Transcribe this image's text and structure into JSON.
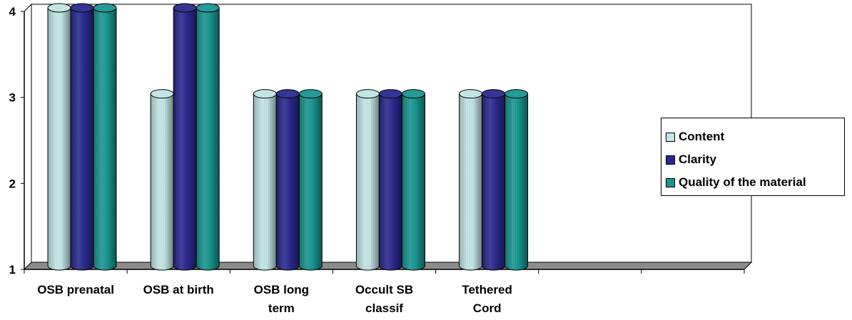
{
  "chart_data": {
    "type": "bar",
    "title": "",
    "xlabel": "",
    "ylabel": "",
    "ylim": [
      1,
      4
    ],
    "yticks": [
      1,
      2,
      3,
      4
    ],
    "categories": [
      [
        "OSB prenatal"
      ],
      [
        "OSB at birth"
      ],
      [
        "OSB long",
        "term"
      ],
      [
        "Occult SB",
        "classif"
      ],
      [
        "Tethered",
        "Cord"
      ],
      [
        ""
      ],
      [
        ""
      ]
    ],
    "series": [
      {
        "name": "Content",
        "color": "#c1e4e4",
        "values": [
          4,
          3,
          3,
          3,
          3,
          null,
          null
        ]
      },
      {
        "name": "Clarity",
        "color": "#2a2a8e",
        "values": [
          4,
          4,
          3,
          3,
          3,
          null,
          null
        ]
      },
      {
        "name": "Quality of the material",
        "color": "#1a9590",
        "values": [
          4,
          4,
          3,
          3,
          3,
          null,
          null
        ]
      }
    ],
    "style": "3d-cylinder",
    "grid": false,
    "legend_position": "right"
  }
}
